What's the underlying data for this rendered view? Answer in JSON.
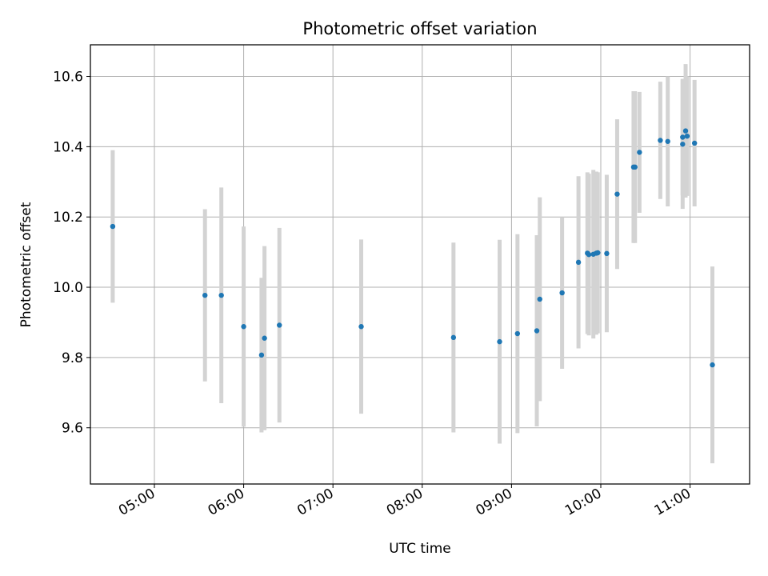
{
  "chart_data": {
    "type": "scatter",
    "title": "Photometric offset variation",
    "xlabel": "UTC time",
    "ylabel": "Photometric offset",
    "x_ticks": [
      "05:00",
      "06:00",
      "07:00",
      "08:00",
      "09:00",
      "10:00",
      "11:00"
    ],
    "y_ticks": [
      "9.6",
      "9.8",
      "10.0",
      "10.2",
      "10.4",
      "10.6"
    ],
    "xlim": [
      "04:17",
      "11:40"
    ],
    "ylim": [
      9.44,
      10.69
    ],
    "grid": true,
    "series": [
      {
        "colors": {
          "point": "#1f77b4",
          "errorbar": "#d3d3d3"
        },
        "points": [
          {
            "time": "04:32",
            "y": 10.173,
            "yerr": 0.217
          },
          {
            "time": "05:34",
            "y": 9.977,
            "yerr": 0.245
          },
          {
            "time": "05:45",
            "y": 9.977,
            "yerr": 0.307
          },
          {
            "time": "06:00",
            "y": 9.888,
            "yerr": 0.285
          },
          {
            "time": "06:12",
            "y": 9.807,
            "yerr": 0.22
          },
          {
            "time": "06:14",
            "y": 9.855,
            "yerr": 0.262
          },
          {
            "time": "06:24",
            "y": 9.892,
            "yerr": 0.277
          },
          {
            "time": "07:19",
            "y": 9.888,
            "yerr": 0.248
          },
          {
            "time": "08:21",
            "y": 9.857,
            "yerr": 0.27
          },
          {
            "time": "08:52",
            "y": 9.845,
            "yerr": 0.29
          },
          {
            "time": "09:04",
            "y": 9.868,
            "yerr": 0.283
          },
          {
            "time": "09:17",
            "y": 9.876,
            "yerr": 0.272
          },
          {
            "time": "09:19",
            "y": 9.966,
            "yerr": 0.29
          },
          {
            "time": "09:34",
            "y": 9.984,
            "yerr": 0.216
          },
          {
            "time": "09:45",
            "y": 10.071,
            "yerr": 0.245
          },
          {
            "time": "09:51",
            "y": 10.097,
            "yerr": 0.23
          },
          {
            "time": "09:52",
            "y": 10.093,
            "yerr": 0.23
          },
          {
            "time": "09:55",
            "y": 10.094,
            "yerr": 0.24
          },
          {
            "time": "09:57",
            "y": 10.097,
            "yerr": 0.232
          },
          {
            "time": "09:58",
            "y": 10.098,
            "yerr": 0.229
          },
          {
            "time": "10:04",
            "y": 10.096,
            "yerr": 0.224
          },
          {
            "time": "10:11",
            "y": 10.265,
            "yerr": 0.213
          },
          {
            "time": "10:22",
            "y": 10.342,
            "yerr": 0.216
          },
          {
            "time": "10:23",
            "y": 10.342,
            "yerr": 0.216
          },
          {
            "time": "10:26",
            "y": 10.384,
            "yerr": 0.172
          },
          {
            "time": "10:40",
            "y": 10.418,
            "yerr": 0.167
          },
          {
            "time": "10:45",
            "y": 10.415,
            "yerr": 0.185
          },
          {
            "time": "10:55",
            "y": 10.427,
            "yerr": 0.166
          },
          {
            "time": "10:55",
            "y": 10.407,
            "yerr": 0.184
          },
          {
            "time": "10:57",
            "y": 10.445,
            "yerr": 0.19
          },
          {
            "time": "10:58",
            "y": 10.43,
            "yerr": 0.17
          },
          {
            "time": "11:03",
            "y": 10.41,
            "yerr": 0.18
          },
          {
            "time": "11:15",
            "y": 9.779,
            "yerr": 0.28
          }
        ]
      }
    ]
  }
}
